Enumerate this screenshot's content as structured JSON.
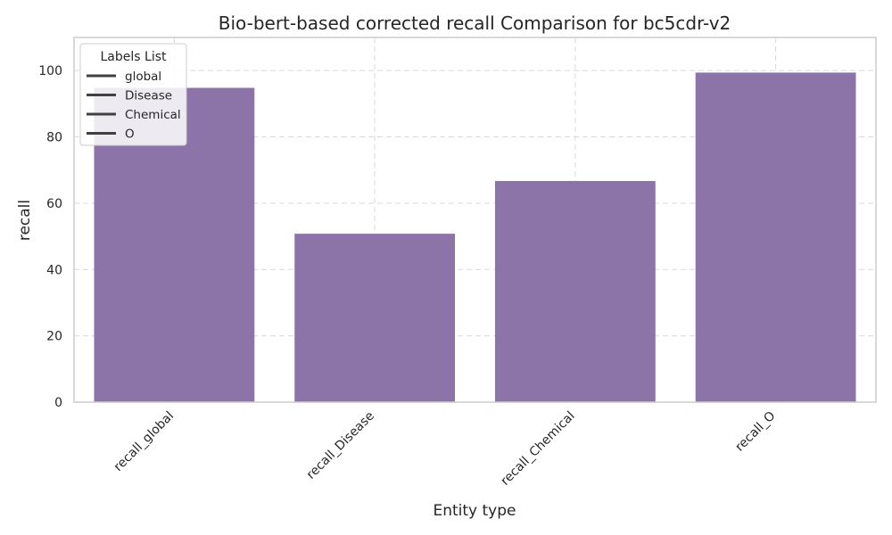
{
  "chart_data": {
    "type": "bar",
    "title": "Bio-bert-based corrected recall Comparison for bc5cdr-v2",
    "xlabel": "Entity type",
    "ylabel": "recall",
    "categories": [
      "recall_global",
      "recall_Disease",
      "recall_Chemical",
      "recall_O"
    ],
    "values": [
      94.8,
      50.8,
      66.7,
      99.4
    ],
    "ylim": [
      0,
      110
    ],
    "yticks": [
      0,
      20,
      40,
      60,
      80,
      100
    ],
    "grid": true,
    "legend": {
      "title": "Labels List",
      "placement": "top-left",
      "entries": [
        "global",
        "Disease",
        "Chemical",
        "O"
      ]
    },
    "colors": {
      "bar": "#8c74a9",
      "grid": "#d9d9d9",
      "frame": "#cccccc",
      "text": "#262626",
      "legend_line": "#404040"
    }
  }
}
